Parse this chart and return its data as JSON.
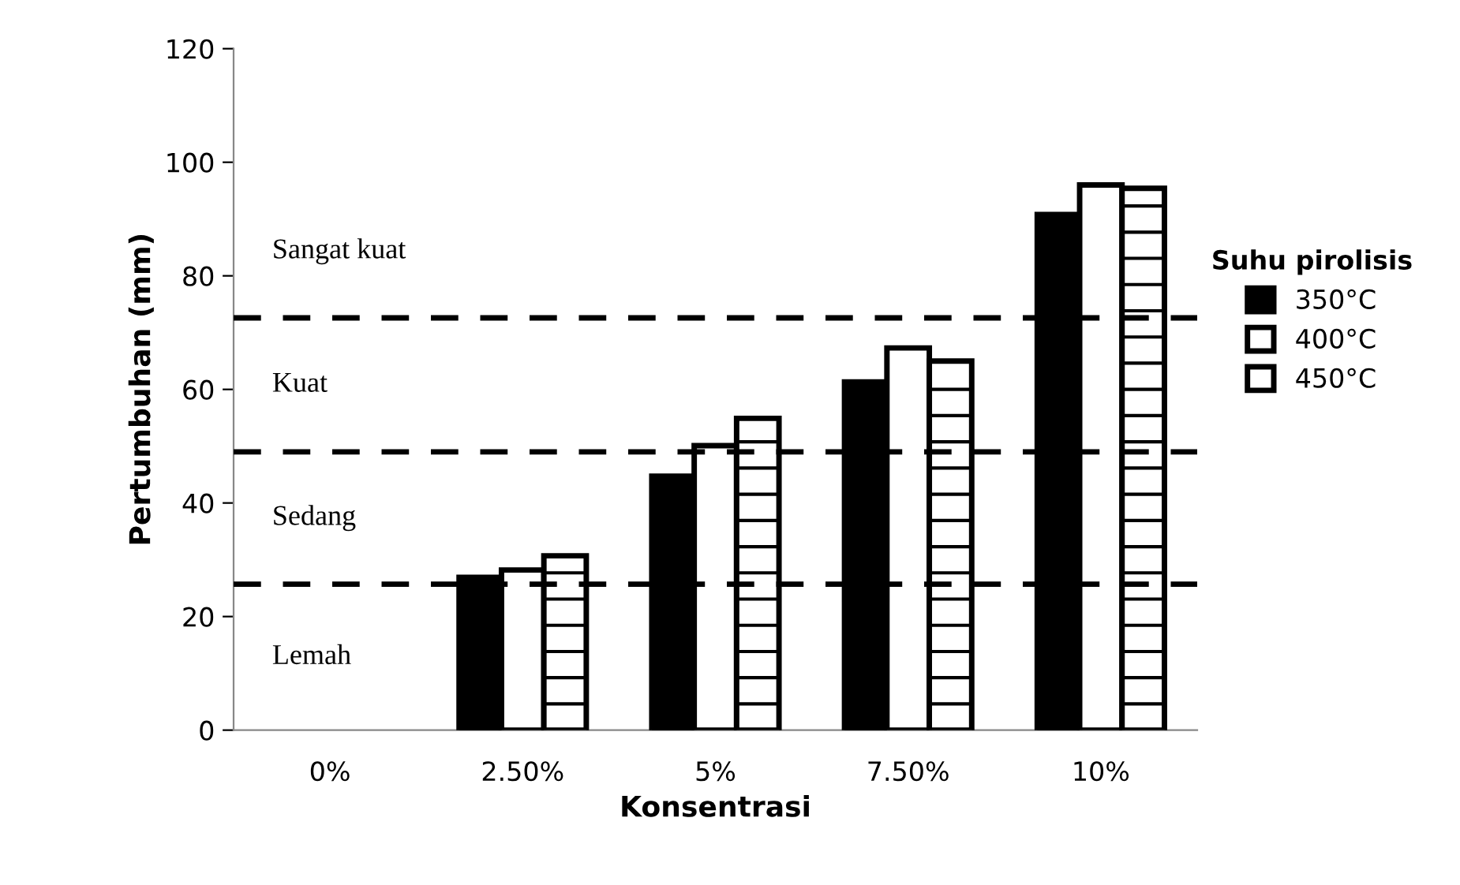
{
  "chart_data": {
    "type": "bar",
    "xlabel": "Konsentrasi",
    "ylabel": "Pertumbuhan (mm)",
    "legend_title": "Suhu pirolisis",
    "categories": [
      "0%",
      "2.50%",
      "5%",
      "7.50%",
      "10%"
    ],
    "series": [
      {
        "name": "350°C",
        "color": "#000000",
        "values": [
          null,
          26.9,
          44.7,
          61.3,
          90.8
        ]
      },
      {
        "name": "400°C",
        "color": "#ffffff",
        "values": [
          null,
          28.2,
          50.1,
          67.3,
          96.0
        ]
      },
      {
        "name": "450°C",
        "color": "#ffffff",
        "values": [
          null,
          30.7,
          54.9,
          65.0,
          95.4
        ]
      }
    ],
    "ylim": [
      0,
      120
    ],
    "yticks": [
      0,
      20,
      40,
      60,
      80,
      100,
      120
    ],
    "ref_lines": [
      {
        "axis": "y",
        "value": 72.6,
        "label": null,
        "color": "#000000",
        "line_style": "dashed"
      },
      {
        "axis": "y",
        "value": 49,
        "label": null,
        "color": "#000000",
        "line_style": "dashed"
      },
      {
        "axis": "y",
        "value": 25.7,
        "label": null,
        "color": "#000000",
        "line_style": "dashed"
      }
    ],
    "annotations": [
      "Sangat kuat",
      "Kuat",
      "Sedang",
      "Lemah"
    ],
    "grid": false,
    "legend": "right"
  }
}
